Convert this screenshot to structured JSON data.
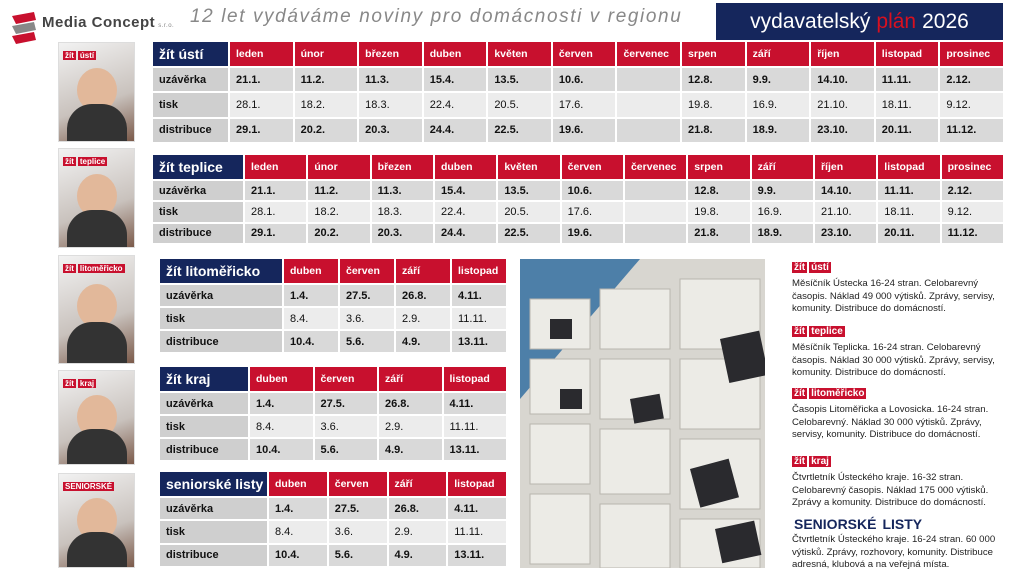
{
  "header": {
    "logo": "Media Concept",
    "logo_suffix": "s.r.o.",
    "tagline": "12 let vydáváme noviny pro domácnosti v regionu",
    "plan": {
      "word1": "vydavatelský",
      "word2": "plán",
      "year": "2026"
    }
  },
  "covers": [
    {
      "brand": "žít",
      "name": "ústí"
    },
    {
      "brand": "žít",
      "name": "teplice"
    },
    {
      "brand": "žít",
      "name": "litoměřicko"
    },
    {
      "brand": "žít",
      "name": "kraj"
    },
    {
      "brand": "SENIORSKÉ",
      "name": null
    }
  ],
  "tables": [
    {
      "name": "žít ústí",
      "columns": [
        "leden",
        "únor",
        "březen",
        "duben",
        "květen",
        "červen",
        "červenec",
        "srpen",
        "září",
        "říjen",
        "listopad",
        "prosinec"
      ],
      "rows": [
        {
          "label": "uzávěrka",
          "cells": [
            "21.1.",
            "11.2.",
            "11.3.",
            "15.4.",
            "13.5.",
            "10.6.",
            null,
            "12.8.",
            "9.9.",
            "14.10.",
            "11.11.",
            "2.12."
          ]
        },
        {
          "label": "tisk",
          "cells": [
            "28.1.",
            "18.2.",
            "18.3.",
            "22.4.",
            "20.5.",
            "17.6.",
            null,
            "19.8.",
            "16.9.",
            "21.10.",
            "18.11.",
            "9.12."
          ]
        },
        {
          "label": "distribuce",
          "cells": [
            "29.1.",
            "20.2.",
            "20.3.",
            "24.4.",
            "22.5.",
            "19.6.",
            null,
            "21.8.",
            "18.9.",
            "23.10.",
            "20.11.",
            "11.12."
          ]
        }
      ]
    },
    {
      "name": "žít teplice",
      "columns": [
        "leden",
        "únor",
        "březen",
        "duben",
        "květen",
        "červen",
        "červenec",
        "srpen",
        "září",
        "říjen",
        "listopad",
        "prosinec"
      ],
      "rows": [
        {
          "label": "uzávěrka",
          "cells": [
            "21.1.",
            "11.2.",
            "11.3.",
            "15.4.",
            "13.5.",
            "10.6.",
            null,
            "12.8.",
            "9.9.",
            "14.10.",
            "11.11.",
            "2.12."
          ]
        },
        {
          "label": "tisk",
          "cells": [
            "28.1.",
            "18.2.",
            "18.3.",
            "22.4.",
            "20.5.",
            "17.6.",
            null,
            "19.8.",
            "16.9.",
            "21.10.",
            "18.11.",
            "9.12."
          ]
        },
        {
          "label": "distribuce",
          "cells": [
            "29.1.",
            "20.2.",
            "20.3.",
            "24.4.",
            "22.5.",
            "19.6.",
            null,
            "21.8.",
            "18.9.",
            "23.10.",
            "20.11.",
            "11.12."
          ]
        }
      ]
    },
    {
      "name": "žít litoměřicko",
      "columns": [
        "duben",
        "červen",
        "září",
        "listopad"
      ],
      "rows": [
        {
          "label": "uzávěrka",
          "cells": [
            "1.4.",
            "27.5.",
            "26.8.",
            "4.11."
          ]
        },
        {
          "label": "tisk",
          "cells": [
            "8.4.",
            "3.6.",
            "2.9.",
            "11.11."
          ]
        },
        {
          "label": "distribuce",
          "cells": [
            "10.4.",
            "5.6.",
            "4.9.",
            "13.11."
          ]
        }
      ]
    },
    {
      "name": "žít kraj",
      "columns": [
        "duben",
        "červen",
        "září",
        "listopad"
      ],
      "rows": [
        {
          "label": "uzávěrka",
          "cells": [
            "1.4.",
            "27.5.",
            "26.8.",
            "4.11."
          ]
        },
        {
          "label": "tisk",
          "cells": [
            "8.4.",
            "3.6.",
            "2.9.",
            "11.11."
          ]
        },
        {
          "label": "distribuce",
          "cells": [
            "10.4.",
            "5.6.",
            "4.9.",
            "13.11."
          ]
        }
      ]
    },
    {
      "name": "seniorské listy",
      "columns": [
        "duben",
        "červen",
        "září",
        "listopad"
      ],
      "rows": [
        {
          "label": "uzávěrka",
          "cells": [
            "1.4.",
            "27.5.",
            "26.8.",
            "4.11."
          ]
        },
        {
          "label": "tisk",
          "cells": [
            "8.4.",
            "3.6.",
            "2.9.",
            "11.11."
          ]
        },
        {
          "label": "distribuce",
          "cells": [
            "10.4.",
            "5.6.",
            "4.9.",
            "13.11."
          ]
        }
      ]
    }
  ],
  "descriptions": [
    {
      "brand": "žít",
      "name": "ústí",
      "text": "Měsíčník Ústecka  16-24 stran. Celobarevný časopis. Náklad 49 000 výtisků. Zprávy, servisy, komunity. Distribuce do domácností."
    },
    {
      "brand": "žít",
      "name": "teplice",
      "text": "Měsíčník Teplicka. 16-24 stran. Celobarevný časopis. Náklad 30 000 výtisků. Zprávy, servisy, komunity. Distribuce do domácností."
    },
    {
      "brand": "žít",
      "name": "litoměřicko",
      "text": "Časopis Litoměřicka a Lovosicka. 16-24 stran. Celobarevný. Náklad 30 000 výtisků. Zprávy, servisy, komunity. Distribuce do domácností."
    },
    {
      "brand": "žít",
      "name": "kraj",
      "text": "Čtvrtletník Ústeckého kraje. 16-32 stran. Celobarevný časopis. Náklad 175 000 výtisků. Zprávy a komunity. Distribuce do domácností."
    },
    {
      "brand": "SENIORSKÉ",
      "name": "LISTY",
      "text": "Čtvrtletník Ústeckého kraje. 16-24 stran. 60 000 výtisků. Zprávy, rozhovory, komunity. Distribuce adresná, klubová a na veřejná místa."
    }
  ]
}
